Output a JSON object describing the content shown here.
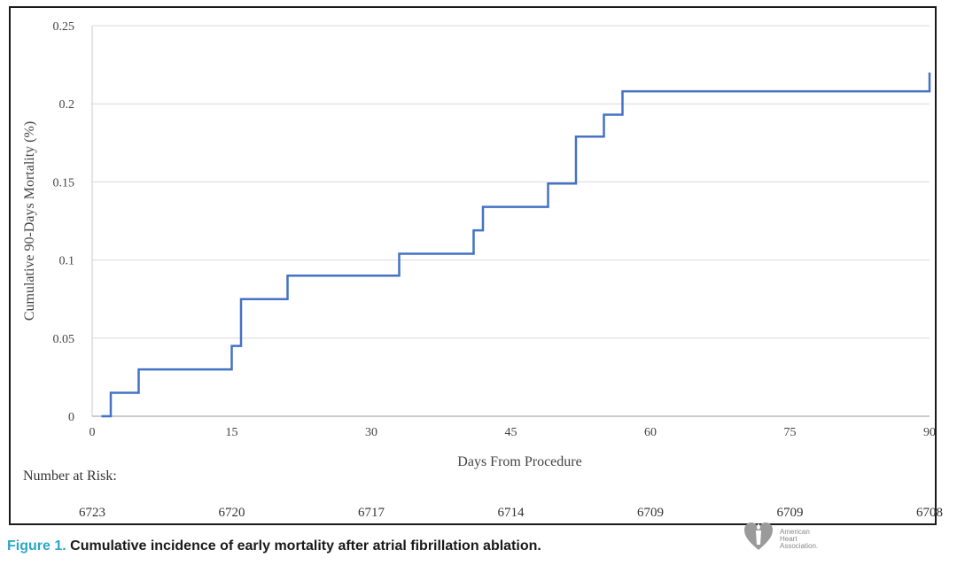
{
  "chart_data": {
    "type": "line",
    "step": true,
    "ylabel": "Cumulative 90-Days Mortality (%)",
    "xlabel": "Days From Procedure",
    "xlim": [
      0,
      90
    ],
    "ylim": [
      0,
      0.25
    ],
    "x_ticks": [
      0,
      15,
      30,
      45,
      60,
      75,
      90
    ],
    "y_ticks": [
      0,
      0.05,
      0.1,
      0.15,
      0.2,
      0.25
    ],
    "y_tick_labels": [
      "0",
      "0.05",
      "0.1",
      "0.15",
      "0.2",
      "0.25"
    ],
    "grid": "horizontal",
    "series": [
      {
        "color": "#4472c4",
        "points": [
          [
            1,
            0
          ],
          [
            2,
            0
          ],
          [
            2,
            0.015
          ],
          [
            5,
            0.015
          ],
          [
            5,
            0.03
          ],
          [
            15,
            0.03
          ],
          [
            15,
            0.045
          ],
          [
            16,
            0.045
          ],
          [
            16,
            0.075
          ],
          [
            21,
            0.075
          ],
          [
            21,
            0.09
          ],
          [
            33,
            0.09
          ],
          [
            33,
            0.104
          ],
          [
            41,
            0.104
          ],
          [
            41,
            0.119
          ],
          [
            42,
            0.119
          ],
          [
            42,
            0.134
          ],
          [
            49,
            0.134
          ],
          [
            49,
            0.149
          ],
          [
            52,
            0.149
          ],
          [
            52,
            0.179
          ],
          [
            55,
            0.179
          ],
          [
            55,
            0.193
          ],
          [
            57,
            0.193
          ],
          [
            57,
            0.208
          ],
          [
            90,
            0.208
          ],
          [
            90,
            0.22
          ]
        ]
      }
    ]
  },
  "risk_table": {
    "title": "Number at Risk:",
    "values": [
      "6723",
      "6720",
      "6717",
      "6714",
      "6709",
      "6709",
      "6708"
    ]
  },
  "caption": {
    "label": "Figure 1.",
    "text": "Cumulative incidence of early mortality after atrial fibrillation ablation."
  },
  "logo": {
    "line1": "American",
    "line2": "Heart",
    "line3": "Association."
  }
}
